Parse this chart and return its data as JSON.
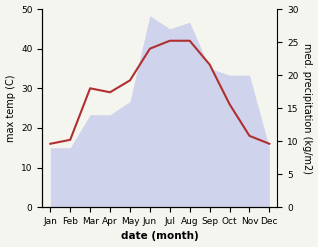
{
  "months": [
    "Jan",
    "Feb",
    "Mar",
    "Apr",
    "May",
    "Jun",
    "Jul",
    "Aug",
    "Sep",
    "Oct",
    "Nov",
    "Dec"
  ],
  "temperature": [
    16,
    17,
    30,
    29,
    32,
    40,
    42,
    42,
    36,
    26,
    18,
    16
  ],
  "precipitation": [
    9,
    9,
    14,
    14,
    16,
    29,
    27,
    28,
    21,
    20,
    20,
    9
  ],
  "temp_color": "#b03030",
  "precip_color": "#b0b8e8",
  "precip_alpha": 0.55,
  "xlabel": "date (month)",
  "ylabel_left": "max temp (C)",
  "ylabel_right": "med. precipitation (kg/m2)",
  "ylim_left": [
    0,
    50
  ],
  "ylim_right": [
    0,
    30
  ],
  "yticks_left": [
    0,
    10,
    20,
    30,
    40,
    50
  ],
  "yticks_right": [
    0,
    5,
    10,
    15,
    20,
    25,
    30
  ],
  "figsize": [
    3.18,
    2.47
  ],
  "dpi": 100,
  "xlabel_fontsize": 7.5,
  "xlabel_bold": true,
  "ylabel_fontsize": 7,
  "tick_fontsize": 6.5,
  "line_width": 1.5,
  "bg_color": "#f5f5f0"
}
